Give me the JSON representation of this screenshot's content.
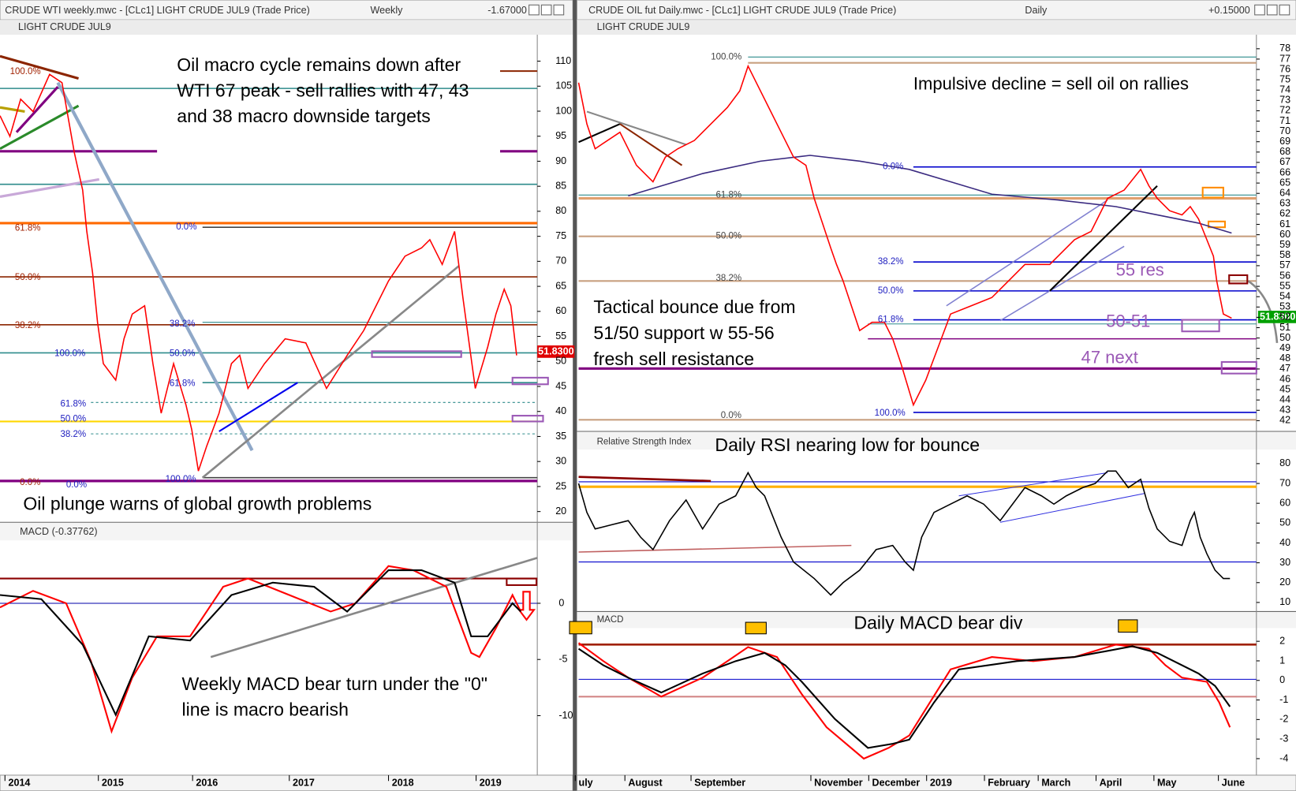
{
  "left_window": {
    "title": "CRUDE WTI weekly.mwc - [CLc1] LIGHT CRUDE JUL9 (Trade Price)",
    "timeframe": "Weekly",
    "change": "-1.67000",
    "instrument": "LIGHT CRUDE JUL9",
    "last_price": "51.8300",
    "price_ticks": [
      110,
      105,
      100,
      95,
      90,
      85,
      80,
      75,
      70,
      65,
      60,
      55,
      50,
      45,
      40,
      35,
      30,
      25,
      20
    ],
    "macd_label": "MACD (-0.37762)",
    "macd_ticks": [
      0,
      -5,
      -10
    ],
    "dates": [
      "2014",
      "2015",
      "2016",
      "2017",
      "2018",
      "2019"
    ],
    "fib_labels": [
      "100.0%",
      "61.8%",
      "50.0%",
      "38.2%",
      "100.0%",
      "0.0%",
      "38.2%",
      "50.0%",
      "61.8%",
      "61.8%",
      "50.0%",
      "38.2%",
      "0.0%",
      "0.0%",
      "100.0%"
    ],
    "annotations": [
      [
        "Oil macro cycle remains down after",
        "WTI 67 peak - sell rallies with 47, 43",
        "and 38 macro downside targets"
      ],
      [
        "Oil plunge warns of global growth problems"
      ],
      [
        "Weekly MACD bear turn under the \"0\"",
        "line is macro bearish"
      ]
    ]
  },
  "right_window": {
    "title": "CRUDE OIL fut Daily.mwc - [CLc1] LIGHT CRUDE JUL9 (Trade Price)",
    "timeframe": "Daily",
    "change": "+0.15000",
    "instrument": "LIGHT CRUDE JUL9",
    "last_price": "51.8300",
    "price_ticks": [
      78,
      77,
      76,
      75,
      74,
      73,
      72,
      71,
      70,
      69,
      68,
      67,
      66,
      65,
      64,
      63,
      62,
      61,
      60,
      59,
      58,
      57,
      56,
      55,
      54,
      53,
      52,
      51,
      50,
      49,
      48,
      47,
      46,
      45,
      44,
      43,
      42
    ],
    "rsi_label": "Relative Strength Index",
    "rsi_ticks": [
      80,
      70,
      60,
      50,
      40,
      30,
      20,
      10
    ],
    "macd_label": "MACD",
    "macd_ticks": [
      2,
      1,
      0,
      -1,
      -2,
      -3,
      -4
    ],
    "dates": [
      "uly",
      "August",
      "September",
      "November",
      "December",
      "2019",
      "February",
      "March",
      "April",
      "May",
      "June"
    ],
    "fib_labels": [
      "100.0%",
      "0.0%",
      "61.8%",
      "50.0%",
      "38.2%",
      "38.2%",
      "50.0%",
      "61.8%",
      "0.0%",
      "100.0%"
    ],
    "levels": [
      "55 res",
      "50-51",
      "47 next"
    ],
    "annotations": [
      [
        "Impulsive decline = sell oil on rallies"
      ],
      [
        "Tactical bounce due from",
        "51/50 support w 55-56",
        "fresh sell resistance"
      ],
      [
        "Daily RSI nearing low for bounce"
      ],
      [
        "Daily MACD bear div"
      ]
    ]
  }
}
